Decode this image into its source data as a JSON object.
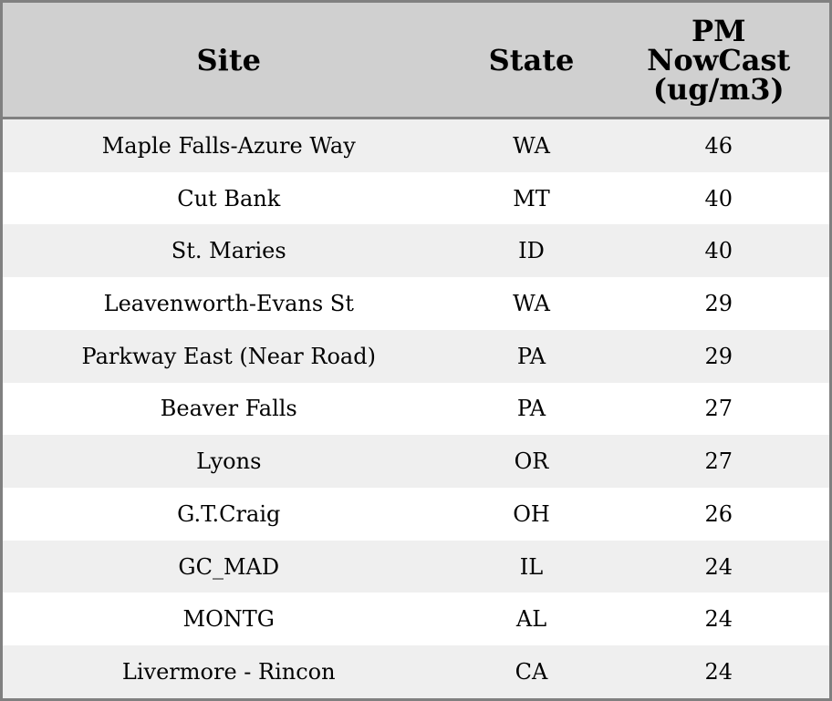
{
  "table": {
    "headers": [
      "Site",
      "State",
      "PM NowCast (ug/m3)"
    ],
    "rows": [
      [
        "Maple Falls-Azure Way",
        "WA",
        "46"
      ],
      [
        "Cut Bank",
        "MT",
        "40"
      ],
      [
        "St. Maries",
        "ID",
        "40"
      ],
      [
        "Leavenworth-Evans St",
        "WA",
        "29"
      ],
      [
        "Parkway East (Near Road)",
        "PA",
        "29"
      ],
      [
        "Beaver Falls",
        "PA",
        "27"
      ],
      [
        "Lyons",
        "OR",
        "27"
      ],
      [
        "G.T.Craig",
        "OH",
        "26"
      ],
      [
        "GC_MAD",
        "IL",
        "24"
      ],
      [
        "MONTG",
        "AL",
        "24"
      ],
      [
        "Livermore - Rincon",
        "CA",
        "24"
      ]
    ]
  },
  "colors": {
    "border": "#808080",
    "header_bg": "#d0d0d0",
    "row_alt_bg": "#efefef",
    "row_bg": "#ffffff"
  }
}
